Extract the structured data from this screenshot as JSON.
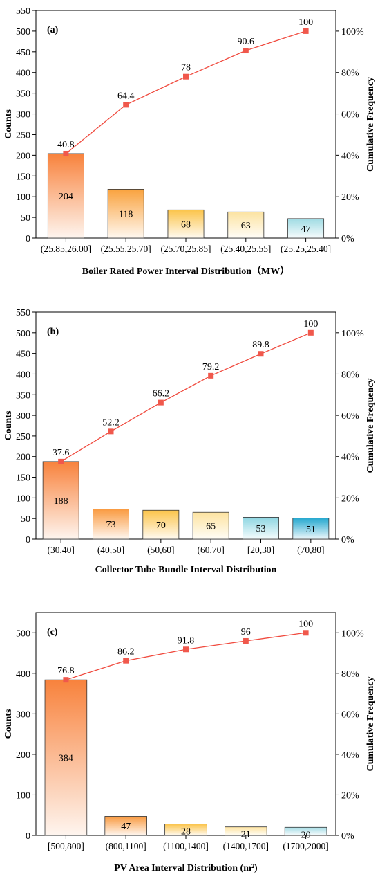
{
  "colors": {
    "line": "#f04a3e",
    "marker": "#f0584c",
    "axis": "#000000"
  },
  "chart_data": [
    {
      "type": "bar",
      "panel_label": "(a)",
      "xlabel": "Boiler Rated Power Interval Distribution（MW）",
      "ylabel": "Counts",
      "y2label": "Cumulative Frequency",
      "ylim": [
        0,
        550
      ],
      "yticks": [
        0,
        50,
        100,
        150,
        200,
        250,
        300,
        350,
        400,
        450,
        500,
        550
      ],
      "y2lim": [
        0,
        110
      ],
      "y2ticks": [
        "0%",
        "20%",
        "40%",
        "60%",
        "80%",
        "100%"
      ],
      "categories": [
        "(25.85,26.00]",
        "(25.55,25.70]",
        "(25.70,25.85]",
        "(25.40,25.55]",
        "(25.25,25.40]"
      ],
      "series": [
        {
          "values": [
            204,
            118,
            68,
            63,
            47
          ],
          "bar_colors": [
            "#f8823c",
            "#f9a23e",
            "#fbc44a",
            "#fce3a2",
            "#9fdbe3"
          ]
        },
        {
          "values": [
            40.8,
            64.4,
            78,
            90.6,
            100
          ],
          "line_labels": [
            "40.8",
            "64.4",
            "78",
            "90.6",
            "100"
          ]
        }
      ],
      "bar_labels": [
        "204",
        "118",
        "68",
        "63",
        "47"
      ]
    },
    {
      "type": "bar",
      "panel_label": "(b)",
      "xlabel": "Collector Tube Bundle Interval Distribution",
      "ylabel": "Counts",
      "y2label": "Cumulative Frequency",
      "ylim": [
        0,
        550
      ],
      "yticks": [
        0,
        50,
        100,
        150,
        200,
        250,
        300,
        350,
        400,
        450,
        500,
        550
      ],
      "y2lim": [
        0,
        110
      ],
      "y2ticks": [
        "0%",
        "20%",
        "40%",
        "60%",
        "80%",
        "100%"
      ],
      "categories": [
        "(30,40]",
        "(40,50]",
        "(50,60]",
        "(60,70]",
        "[20,30]",
        "(70,80]"
      ],
      "series": [
        {
          "values": [
            188,
            73,
            70,
            65,
            53,
            51
          ],
          "bar_colors": [
            "#f8823c",
            "#f99a40",
            "#fbc44a",
            "#fde3a0",
            "#8ed6e2",
            "#25a8cf"
          ]
        },
        {
          "values": [
            37.6,
            52.2,
            66.2,
            79.2,
            89.8,
            100
          ],
          "line_labels": [
            "37.6",
            "52.2",
            "66.2",
            "79.2",
            "89.8",
            "100"
          ]
        }
      ],
      "bar_labels": [
        "188",
        "73",
        "70",
        "65",
        "53",
        "51"
      ]
    },
    {
      "type": "bar",
      "panel_label": "(c)",
      "xlabel": "PV Area Interval Distribution (m²)",
      "ylabel": "Counts",
      "y2label": "Cumulative Frequency",
      "ylim": [
        0,
        550
      ],
      "yticks": [
        0,
        100,
        200,
        300,
        400,
        500
      ],
      "y2lim": [
        0,
        110
      ],
      "y2ticks": [
        "0%",
        "20%",
        "40%",
        "60%",
        "80%",
        "100%"
      ],
      "categories": [
        "[500,800]",
        "(800,1100]",
        "(1100,1400]",
        "(1400,1700]",
        "(1700,2000]"
      ],
      "series": [
        {
          "values": [
            384,
            47,
            28,
            21,
            20
          ],
          "bar_colors": [
            "#f8823c",
            "#f99a40",
            "#fbc44a",
            "#fde3a0",
            "#a6dde6"
          ]
        },
        {
          "values": [
            76.8,
            86.2,
            91.8,
            96,
            100
          ],
          "line_labels": [
            "76.8",
            "86.2",
            "91.8",
            "96",
            "100"
          ]
        }
      ],
      "bar_labels": [
        "384",
        "47",
        "28",
        "21",
        "20"
      ]
    }
  ]
}
